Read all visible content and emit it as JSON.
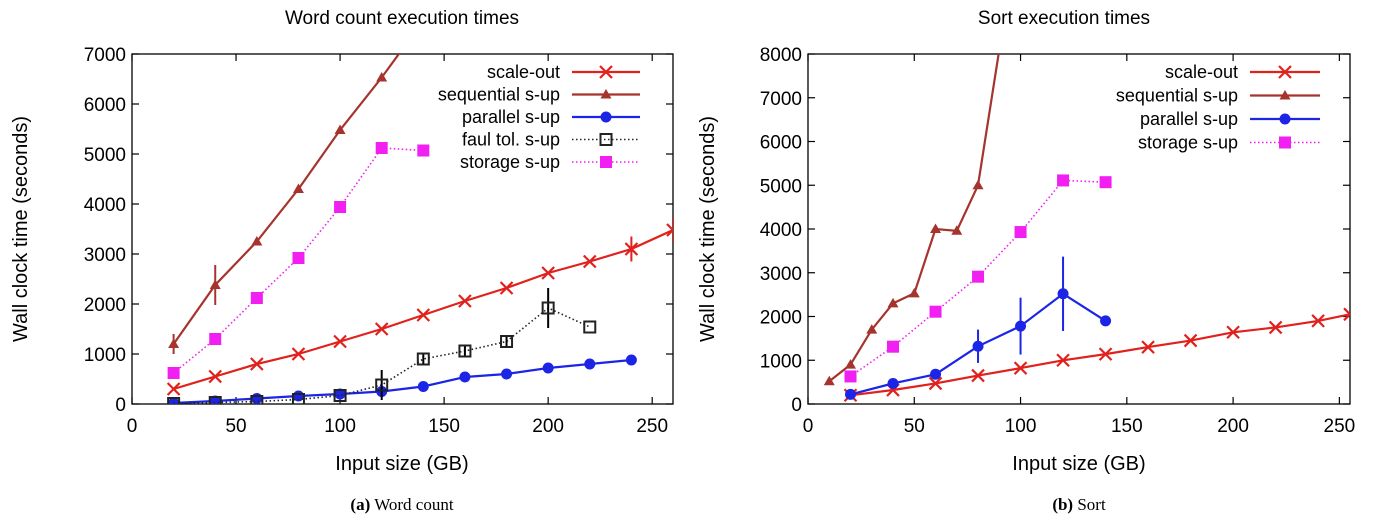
{
  "chart_data": [
    {
      "type": "line",
      "title": "Word count execution times",
      "xlabel": "Input size (GB)",
      "ylabel": "Wall clock time (seconds)",
      "xlim": [
        0,
        260
      ],
      "ylim": [
        0,
        7000
      ],
      "xticks": [
        0,
        50,
        100,
        150,
        200,
        250
      ],
      "yticks": [
        0,
        1000,
        2000,
        3000,
        4000,
        5000,
        6000,
        7000
      ],
      "legend_position": "top-right",
      "caption_label": "(a)",
      "caption_text": "Word count",
      "series": [
        {
          "name": "scale-out",
          "color": "#e0211c",
          "marker": "x",
          "line": "solid",
          "x": [
            20,
            40,
            60,
            80,
            100,
            120,
            140,
            160,
            180,
            200,
            220,
            240,
            260
          ],
          "y": [
            300,
            550,
            800,
            1000,
            1250,
            1500,
            1780,
            2060,
            2320,
            2620,
            2850,
            3100,
            3480
          ],
          "err": [
            0,
            0,
            0,
            0,
            0,
            0,
            0,
            0,
            0,
            0,
            0,
            250,
            250
          ]
        },
        {
          "name": "sequential s-up",
          "color": "#a6332e",
          "marker": "triangle",
          "line": "solid",
          "x": [
            20,
            40,
            60,
            80,
            100,
            120,
            130
          ],
          "y": [
            1200,
            2380,
            3250,
            4300,
            5480,
            6530,
            7100
          ],
          "err": [
            200,
            400,
            0,
            0,
            0,
            0,
            0
          ]
        },
        {
          "name": "parallel s-up",
          "color": "#1c24e6",
          "marker": "circle",
          "line": "solid",
          "x": [
            20,
            40,
            60,
            80,
            100,
            120,
            140,
            160,
            180,
            200,
            220,
            240
          ],
          "y": [
            20,
            60,
            110,
            160,
            200,
            250,
            350,
            540,
            600,
            720,
            800,
            880
          ],
          "err": [
            0,
            0,
            0,
            0,
            0,
            0,
            0,
            0,
            0,
            0,
            0,
            0
          ]
        },
        {
          "name": "faul tol. s-up",
          "color": "#222222",
          "marker": "open-square",
          "line": "dotted",
          "x": [
            20,
            40,
            60,
            80,
            100,
            120,
            140,
            160,
            180,
            200,
            220
          ],
          "y": [
            10,
            30,
            50,
            90,
            170,
            380,
            900,
            1060,
            1250,
            1920,
            1540
          ],
          "err": [
            0,
            0,
            0,
            0,
            0,
            300,
            100,
            100,
            100,
            400,
            0
          ]
        },
        {
          "name": "storage s-up",
          "color": "#f21ff2",
          "marker": "filled-square",
          "line": "dotted",
          "x": [
            20,
            40,
            60,
            80,
            100,
            120,
            140
          ],
          "y": [
            620,
            1300,
            2120,
            2920,
            3940,
            5120,
            5070
          ],
          "err": [
            0,
            0,
            0,
            0,
            0,
            0,
            0
          ]
        }
      ]
    },
    {
      "type": "line",
      "title": "Sort execution times",
      "xlabel": "Input size (GB)",
      "ylabel": "Wall clock time (seconds)",
      "xlim": [
        0,
        255
      ],
      "ylim": [
        0,
        8000
      ],
      "xticks": [
        0,
        50,
        100,
        150,
        200,
        250
      ],
      "yticks": [
        0,
        1000,
        2000,
        3000,
        4000,
        5000,
        6000,
        7000,
        8000
      ],
      "legend_position": "top-right",
      "caption_label": "(b)",
      "caption_text": "Sort",
      "series": [
        {
          "name": "scale-out",
          "color": "#e0211c",
          "marker": "x",
          "line": "solid",
          "x": [
            20,
            40,
            60,
            80,
            100,
            120,
            140,
            160,
            180,
            200,
            220,
            240,
            255
          ],
          "y": [
            200,
            320,
            470,
            650,
            820,
            1000,
            1140,
            1300,
            1450,
            1640,
            1750,
            1900,
            2050
          ],
          "err": [
            0,
            0,
            0,
            0,
            0,
            0,
            0,
            0,
            0,
            0,
            0,
            0,
            0
          ]
        },
        {
          "name": "sequential s-up",
          "color": "#a6332e",
          "marker": "triangle",
          "line": "solid",
          "x": [
            10,
            20,
            30,
            40,
            50,
            60,
            70,
            80,
            90
          ],
          "y": [
            520,
            900,
            1700,
            2300,
            2530,
            4000,
            3960,
            5000,
            8100
          ],
          "err": [
            0,
            0,
            0,
            0,
            0,
            0,
            0,
            0,
            0
          ]
        },
        {
          "name": "parallel s-up",
          "color": "#1c24e6",
          "marker": "circle",
          "line": "solid",
          "x": [
            20,
            40,
            60,
            80,
            100,
            120,
            140
          ],
          "y": [
            220,
            470,
            680,
            1320,
            1780,
            2520,
            1900
          ],
          "err": [
            0,
            0,
            0,
            380,
            650,
            850,
            0
          ]
        },
        {
          "name": "storage s-up",
          "color": "#f21ff2",
          "marker": "filled-square",
          "line": "dotted",
          "x": [
            20,
            40,
            60,
            80,
            100,
            120,
            140
          ],
          "y": [
            630,
            1310,
            2110,
            2910,
            3930,
            5110,
            5070
          ],
          "err": [
            0,
            0,
            0,
            0,
            0,
            0,
            0
          ]
        }
      ]
    }
  ]
}
